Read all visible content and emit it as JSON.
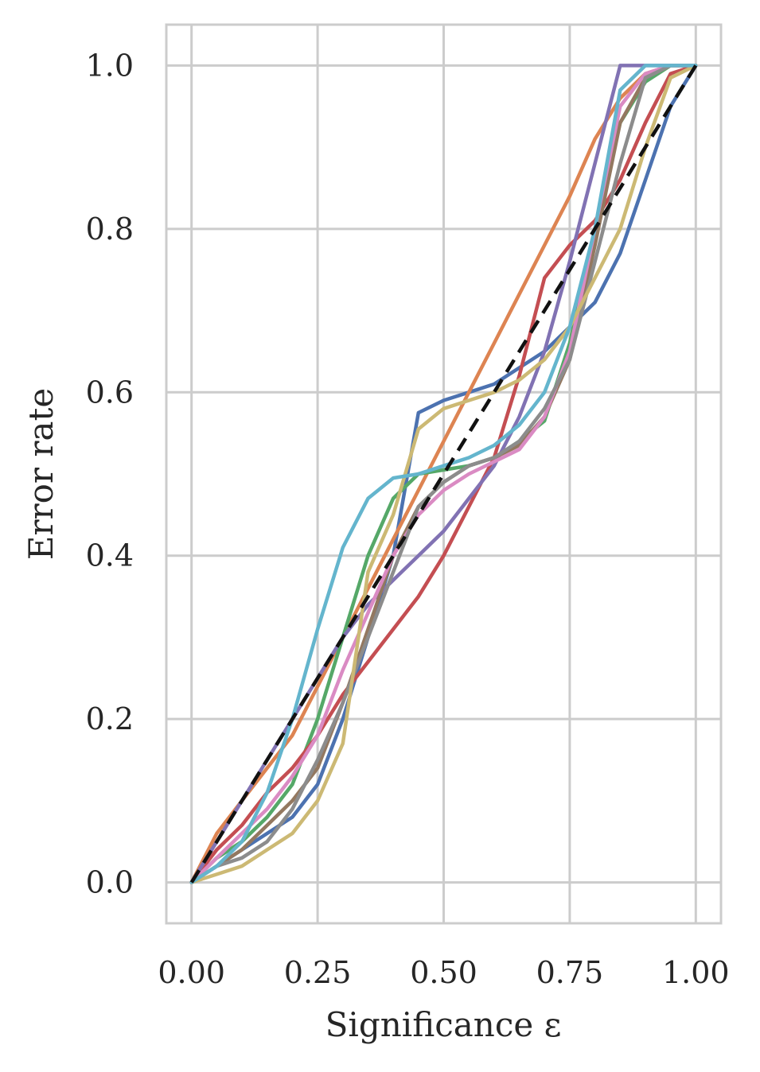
{
  "chart_data": {
    "type": "line",
    "title": "",
    "xlabel": "Significance ε",
    "ylabel": "Error rate",
    "xlim": [
      -0.05,
      1.05
    ],
    "ylim": [
      -0.05,
      1.05
    ],
    "xticks": [
      0.0,
      0.25,
      0.5,
      0.75,
      1.0
    ],
    "xtick_labels": [
      "0.00",
      "0.25",
      "0.50",
      "0.75",
      "1.00"
    ],
    "yticks": [
      0.0,
      0.2,
      0.4,
      0.6,
      0.8,
      1.0
    ],
    "ytick_labels": [
      "0.0",
      "0.2",
      "0.4",
      "0.6",
      "0.8",
      "1.0"
    ],
    "grid": true,
    "legend": "none",
    "x": [
      0,
      0.05,
      0.1,
      0.15,
      0.2,
      0.25,
      0.3,
      0.35,
      0.4,
      0.45,
      0.5,
      0.55,
      0.6,
      0.65,
      0.7,
      0.75,
      0.8,
      0.85,
      0.9,
      0.95,
      1.0
    ],
    "reference": {
      "color": "#111111",
      "style": "dashed",
      "values": [
        0,
        0.05,
        0.1,
        0.15,
        0.2,
        0.25,
        0.3,
        0.35,
        0.4,
        0.45,
        0.5,
        0.55,
        0.6,
        0.65,
        0.7,
        0.75,
        0.8,
        0.85,
        0.9,
        0.95,
        1.0
      ]
    },
    "series": [
      {
        "color": "#4c72b0",
        "values": [
          0,
          0.02,
          0.04,
          0.06,
          0.08,
          0.12,
          0.2,
          0.3,
          0.4,
          0.575,
          0.59,
          0.6,
          0.61,
          0.63,
          0.65,
          0.68,
          0.71,
          0.77,
          0.86,
          0.95,
          1.0
        ]
      },
      {
        "color": "#dd8452",
        "values": [
          0,
          0.06,
          0.1,
          0.14,
          0.18,
          0.24,
          0.3,
          0.36,
          0.42,
          0.48,
          0.54,
          0.6,
          0.66,
          0.72,
          0.78,
          0.84,
          0.91,
          0.96,
          0.99,
          1.0,
          1.0
        ]
      },
      {
        "color": "#55a868",
        "values": [
          0,
          0.03,
          0.05,
          0.08,
          0.12,
          0.2,
          0.3,
          0.4,
          0.47,
          0.5,
          0.505,
          0.51,
          0.52,
          0.54,
          0.565,
          0.66,
          0.8,
          0.93,
          0.98,
          1.0,
          1.0
        ]
      },
      {
        "color": "#c44e52",
        "values": [
          0,
          0.04,
          0.07,
          0.11,
          0.14,
          0.18,
          0.23,
          0.27,
          0.31,
          0.35,
          0.4,
          0.46,
          0.52,
          0.62,
          0.74,
          0.78,
          0.81,
          0.86,
          0.93,
          0.99,
          1.0
        ]
      },
      {
        "color": "#8172b3",
        "values": [
          0,
          0.05,
          0.1,
          0.15,
          0.2,
          0.25,
          0.3,
          0.34,
          0.37,
          0.4,
          0.43,
          0.47,
          0.51,
          0.57,
          0.65,
          0.76,
          0.88,
          1.0,
          1.0,
          1.0,
          1.0
        ]
      },
      {
        "color": "#937860",
        "values": [
          0,
          0.02,
          0.04,
          0.07,
          0.1,
          0.14,
          0.22,
          0.31,
          0.4,
          0.46,
          0.49,
          0.51,
          0.52,
          0.535,
          0.57,
          0.64,
          0.78,
          0.93,
          0.985,
          1.0,
          1.0
        ]
      },
      {
        "color": "#da8bc3",
        "values": [
          0,
          0.03,
          0.06,
          0.09,
          0.13,
          0.18,
          0.26,
          0.33,
          0.4,
          0.45,
          0.48,
          0.5,
          0.515,
          0.53,
          0.57,
          0.65,
          0.8,
          0.95,
          0.99,
          1.0,
          1.0
        ]
      },
      {
        "color": "#8c8c8c",
        "values": [
          0,
          0.02,
          0.03,
          0.05,
          0.09,
          0.15,
          0.22,
          0.3,
          0.38,
          0.46,
          0.49,
          0.51,
          0.52,
          0.54,
          0.58,
          0.64,
          0.76,
          0.88,
          0.985,
          1.0,
          1.0
        ]
      },
      {
        "color": "#ccb974",
        "values": [
          0,
          0.01,
          0.02,
          0.04,
          0.06,
          0.1,
          0.17,
          0.38,
          0.45,
          0.555,
          0.58,
          0.59,
          0.6,
          0.615,
          0.64,
          0.68,
          0.74,
          0.8,
          0.9,
          0.985,
          1.0
        ]
      },
      {
        "color": "#64b5cd",
        "values": [
          0,
          0.02,
          0.05,
          0.11,
          0.2,
          0.31,
          0.41,
          0.47,
          0.495,
          0.5,
          0.51,
          0.52,
          0.535,
          0.56,
          0.6,
          0.68,
          0.8,
          0.97,
          1.0,
          1.0,
          1.0
        ]
      }
    ]
  }
}
